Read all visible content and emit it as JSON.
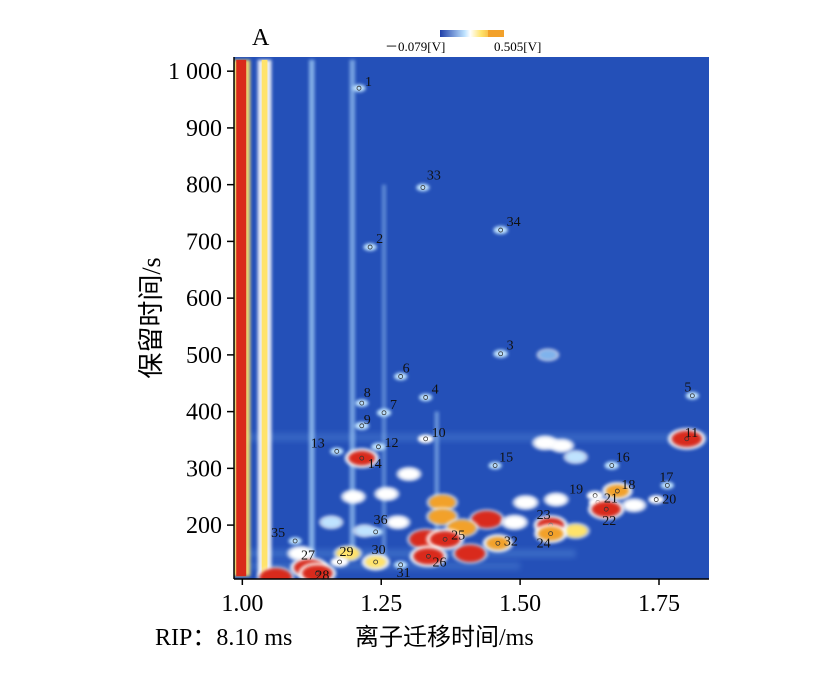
{
  "chart_data": {
    "type": "heatmap",
    "panel_label": "A",
    "xlabel_prefix": "RIP：8.10 ms",
    "xlabel": "离子迁移时间/ms",
    "ylabel": "保留时间/s",
    "xlim": [
      0.985,
      1.84
    ],
    "ylim": [
      105,
      1025
    ],
    "xticks": [
      {
        "value": 1.0,
        "label": "1.00"
      },
      {
        "value": 1.25,
        "label": "1.25"
      },
      {
        "value": 1.5,
        "label": "1.50"
      },
      {
        "value": 1.75,
        "label": "1.75"
      }
    ],
    "yticks": [
      {
        "value": 200,
        "label": "200"
      },
      {
        "value": 300,
        "label": "300"
      },
      {
        "value": 400,
        "label": "400"
      },
      {
        "value": 500,
        "label": "500"
      },
      {
        "value": 600,
        "label": "600"
      },
      {
        "value": 700,
        "label": "700"
      },
      {
        "value": 800,
        "label": "800"
      },
      {
        "value": 900,
        "label": "900"
      },
      {
        "value": 1000,
        "label": "1 000"
      }
    ],
    "colorbar": {
      "min_label": "－0.079[V]",
      "max_label": "0.505[V]",
      "min": -0.079,
      "max": 0.505,
      "colors": [
        "#1f3fa8",
        "#3f7bd6",
        "#bfe3ff",
        "#ffffff",
        "#ffe36b",
        "#f2a12a",
        "#d92a1a"
      ]
    },
    "background_color": "#2450b8",
    "vertical_streaks": [
      {
        "x": 0.998,
        "ymin": 110,
        "ymax": 1020,
        "intensity": 1.0,
        "width": 0.018
      },
      {
        "x": 1.04,
        "ymin": 110,
        "ymax": 1020,
        "intensity": 0.75,
        "width": 0.014
      },
      {
        "x": 1.125,
        "ymin": 140,
        "ymax": 1020,
        "intensity": 0.35,
        "width": 0.01
      },
      {
        "x": 1.198,
        "ymin": 140,
        "ymax": 1020,
        "intensity": 0.3,
        "width": 0.01
      },
      {
        "x": 1.255,
        "ymin": 140,
        "ymax": 800,
        "intensity": 0.2,
        "width": 0.008
      },
      {
        "x": 1.35,
        "ymin": 140,
        "ymax": 400,
        "intensity": 0.25,
        "width": 0.008
      }
    ],
    "horizontal_bands": [
      {
        "y": 355,
        "xmin": 0.985,
        "xmax": 1.84,
        "intensity": 0.25
      },
      {
        "y": 150,
        "xmin": 0.985,
        "xmax": 1.6,
        "intensity": 0.3
      },
      {
        "y": 128,
        "xmin": 0.985,
        "xmax": 1.5,
        "intensity": 0.25
      }
    ],
    "peaks": [
      {
        "id": "1",
        "x": 1.21,
        "y": 970,
        "intensity": 0.3
      },
      {
        "id": "2",
        "x": 1.23,
        "y": 690,
        "intensity": 0.3
      },
      {
        "id": "3",
        "x": 1.465,
        "y": 502,
        "intensity": 0.35
      },
      {
        "id": "4",
        "x": 1.33,
        "y": 425,
        "intensity": 0.3
      },
      {
        "id": "5",
        "x": 1.81,
        "y": 428,
        "intensity": 0.3
      },
      {
        "id": "6",
        "x": 1.285,
        "y": 462,
        "intensity": 0.3
      },
      {
        "id": "7",
        "x": 1.255,
        "y": 398,
        "intensity": 0.35
      },
      {
        "id": "8",
        "x": 1.215,
        "y": 415,
        "intensity": 0.3
      },
      {
        "id": "9",
        "x": 1.215,
        "y": 375,
        "intensity": 0.35
      },
      {
        "id": "10",
        "x": 1.33,
        "y": 352,
        "intensity": 0.4
      },
      {
        "id": "11",
        "x": 1.8,
        "y": 352,
        "intensity": 1.0
      },
      {
        "id": "12",
        "x": 1.245,
        "y": 338,
        "intensity": 0.35
      },
      {
        "id": "13",
        "x": 1.17,
        "y": 330,
        "intensity": 0.3
      },
      {
        "id": "14",
        "x": 1.215,
        "y": 318,
        "intensity": 0.85
      },
      {
        "id": "15",
        "x": 1.455,
        "y": 305,
        "intensity": 0.3
      },
      {
        "id": "16",
        "x": 1.665,
        "y": 305,
        "intensity": 0.35
      },
      {
        "id": "17",
        "x": 1.765,
        "y": 270,
        "intensity": 0.3
      },
      {
        "id": "18",
        "x": 1.675,
        "y": 260,
        "intensity": 0.7
      },
      {
        "id": "19",
        "x": 1.635,
        "y": 252,
        "intensity": 0.45
      },
      {
        "id": "20",
        "x": 1.745,
        "y": 245,
        "intensity": 0.4
      },
      {
        "id": "21",
        "x": 1.64,
        "y": 240,
        "intensity": 0.5
      },
      {
        "id": "22",
        "x": 1.655,
        "y": 228,
        "intensity": 0.95
      },
      {
        "id": "23",
        "x": 1.555,
        "y": 200,
        "intensity": 0.85
      },
      {
        "id": "24",
        "x": 1.555,
        "y": 185,
        "intensity": 0.8
      },
      {
        "id": "25",
        "x": 1.365,
        "y": 175,
        "intensity": 1.0
      },
      {
        "id": "26",
        "x": 1.335,
        "y": 145,
        "intensity": 1.0
      },
      {
        "id": "27",
        "x": 1.12,
        "y": 125,
        "intensity": 1.0
      },
      {
        "id": "28",
        "x": 1.135,
        "y": 115,
        "intensity": 1.0
      },
      {
        "id": "29",
        "x": 1.175,
        "y": 135,
        "intensity": 0.5
      },
      {
        "id": "30",
        "x": 1.24,
        "y": 135,
        "intensity": 0.6
      },
      {
        "id": "31",
        "x": 1.285,
        "y": 130,
        "intensity": 0.3
      },
      {
        "id": "32",
        "x": 1.46,
        "y": 168,
        "intensity": 0.7
      },
      {
        "id": "33",
        "x": 1.325,
        "y": 795,
        "intensity": 0.3
      },
      {
        "id": "34",
        "x": 1.465,
        "y": 720,
        "intensity": 0.35
      },
      {
        "id": "35",
        "x": 1.095,
        "y": 172,
        "intensity": 0.3
      },
      {
        "id": "36",
        "x": 1.24,
        "y": 188,
        "intensity": 0.35
      }
    ],
    "extra_blobs": [
      {
        "x": 1.06,
        "y": 108,
        "intensity": 1.0
      },
      {
        "x": 1.36,
        "y": 240,
        "intensity": 0.7
      },
      {
        "x": 1.36,
        "y": 215,
        "intensity": 0.75
      },
      {
        "x": 1.44,
        "y": 210,
        "intensity": 0.9
      },
      {
        "x": 1.395,
        "y": 195,
        "intensity": 0.8
      },
      {
        "x": 1.41,
        "y": 150,
        "intensity": 0.9
      },
      {
        "x": 1.33,
        "y": 175,
        "intensity": 1.0
      },
      {
        "x": 1.51,
        "y": 240,
        "intensity": 0.45
      },
      {
        "x": 1.49,
        "y": 205,
        "intensity": 0.5
      },
      {
        "x": 1.6,
        "y": 190,
        "intensity": 0.55
      },
      {
        "x": 1.565,
        "y": 245,
        "intensity": 0.4
      },
      {
        "x": 1.705,
        "y": 235,
        "intensity": 0.4
      },
      {
        "x": 1.3,
        "y": 290,
        "intensity": 0.4
      },
      {
        "x": 1.26,
        "y": 255,
        "intensity": 0.4
      },
      {
        "x": 1.2,
        "y": 250,
        "intensity": 0.4
      },
      {
        "x": 1.545,
        "y": 345,
        "intensity": 0.45
      },
      {
        "x": 1.575,
        "y": 340,
        "intensity": 0.4
      },
      {
        "x": 1.6,
        "y": 320,
        "intensity": 0.35
      },
      {
        "x": 1.55,
        "y": 500,
        "intensity": 0.25
      },
      {
        "x": 1.19,
        "y": 150,
        "intensity": 0.55
      },
      {
        "x": 1.105,
        "y": 150,
        "intensity": 0.5
      },
      {
        "x": 1.28,
        "y": 205,
        "intensity": 0.4
      },
      {
        "x": 1.16,
        "y": 205,
        "intensity": 0.35
      },
      {
        "x": 1.22,
        "y": 190,
        "intensity": 0.3
      }
    ]
  }
}
